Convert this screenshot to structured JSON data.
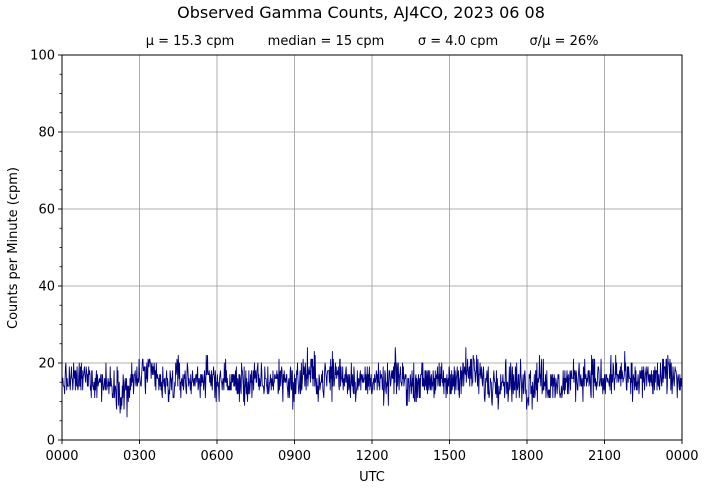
{
  "chart_data": {
    "type": "line",
    "title": "Observed Gamma Counts, AJ4CO, 2023 06 08",
    "subtitle": {
      "mean": "μ = 15.3 cpm",
      "median": "median = 15 cpm",
      "sigma": "σ = 4.0 cpm",
      "ratio": "σ/μ = 26%"
    },
    "xlabel": "UTC",
    "ylabel": "Counts per Minute (cpm)",
    "xlim": [
      0,
      1440
    ],
    "ylim": [
      0,
      100
    ],
    "x_ticks": [
      {
        "value": 0,
        "label": "0000"
      },
      {
        "value": 180,
        "label": "0300"
      },
      {
        "value": 360,
        "label": "0600"
      },
      {
        "value": 540,
        "label": "0900"
      },
      {
        "value": 720,
        "label": "1200"
      },
      {
        "value": 900,
        "label": "1500"
      },
      {
        "value": 1080,
        "label": "1800"
      },
      {
        "value": 1260,
        "label": "2100"
      },
      {
        "value": 1440,
        "label": "0000"
      }
    ],
    "y_ticks": [
      {
        "value": 0,
        "label": "0"
      },
      {
        "value": 20,
        "label": "20"
      },
      {
        "value": 40,
        "label": "40"
      },
      {
        "value": 60,
        "label": "60"
      },
      {
        "value": 80,
        "label": "80"
      },
      {
        "value": 100,
        "label": "100"
      }
    ],
    "y_minor_step": 5,
    "grid": true,
    "line_color": "#000080",
    "grid_color": "#999999",
    "series": [
      {
        "x_unit": "minutes UTC",
        "envelope": [
          {
            "x": 0,
            "min": 9,
            "max": 21
          },
          {
            "x": 30,
            "min": 9,
            "max": 22
          },
          {
            "x": 60,
            "min": 9,
            "max": 24
          },
          {
            "x": 90,
            "min": 8,
            "max": 22
          },
          {
            "x": 120,
            "min": 8,
            "max": 21
          },
          {
            "x": 150,
            "min": 3,
            "max": 22
          },
          {
            "x": 180,
            "min": 9,
            "max": 25
          },
          {
            "x": 210,
            "min": 10,
            "max": 24
          },
          {
            "x": 240,
            "min": 5,
            "max": 22
          },
          {
            "x": 270,
            "min": 8,
            "max": 24
          },
          {
            "x": 300,
            "min": 9,
            "max": 22
          },
          {
            "x": 330,
            "min": 9,
            "max": 23
          },
          {
            "x": 360,
            "min": 8,
            "max": 23
          },
          {
            "x": 390,
            "min": 8,
            "max": 22
          },
          {
            "x": 420,
            "min": 6,
            "max": 23
          },
          {
            "x": 450,
            "min": 9,
            "max": 22
          },
          {
            "x": 480,
            "min": 8,
            "max": 22
          },
          {
            "x": 510,
            "min": 9,
            "max": 24
          },
          {
            "x": 540,
            "min": 6,
            "max": 22
          },
          {
            "x": 570,
            "min": 9,
            "max": 27
          },
          {
            "x": 600,
            "min": 8,
            "max": 22
          },
          {
            "x": 630,
            "min": 8,
            "max": 27
          },
          {
            "x": 660,
            "min": 9,
            "max": 24
          },
          {
            "x": 690,
            "min": 8,
            "max": 22
          },
          {
            "x": 720,
            "min": 10,
            "max": 22
          },
          {
            "x": 750,
            "min": 7,
            "max": 21
          },
          {
            "x": 780,
            "min": 9,
            "max": 25
          },
          {
            "x": 810,
            "min": 7,
            "max": 21
          },
          {
            "x": 840,
            "min": 10,
            "max": 22
          },
          {
            "x": 870,
            "min": 9,
            "max": 22
          },
          {
            "x": 900,
            "min": 7,
            "max": 22
          },
          {
            "x": 930,
            "min": 9,
            "max": 26
          },
          {
            "x": 960,
            "min": 10,
            "max": 25
          },
          {
            "x": 990,
            "min": 5,
            "max": 23
          },
          {
            "x": 1020,
            "min": 8,
            "max": 24
          },
          {
            "x": 1050,
            "min": 8,
            "max": 23
          },
          {
            "x": 1080,
            "min": 3,
            "max": 24
          },
          {
            "x": 1110,
            "min": 8,
            "max": 27
          },
          {
            "x": 1140,
            "min": 4,
            "max": 22
          },
          {
            "x": 1170,
            "min": 8,
            "max": 22
          },
          {
            "x": 1200,
            "min": 9,
            "max": 24
          },
          {
            "x": 1230,
            "min": 9,
            "max": 25
          },
          {
            "x": 1260,
            "min": 7,
            "max": 22
          },
          {
            "x": 1290,
            "min": 8,
            "max": 27
          },
          {
            "x": 1320,
            "min": 8,
            "max": 22
          },
          {
            "x": 1350,
            "min": 9,
            "max": 23
          },
          {
            "x": 1380,
            "min": 9,
            "max": 22
          },
          {
            "x": 1410,
            "min": 9,
            "max": 26
          },
          {
            "x": 1440,
            "min": 11,
            "max": 19
          }
        ]
      }
    ]
  }
}
